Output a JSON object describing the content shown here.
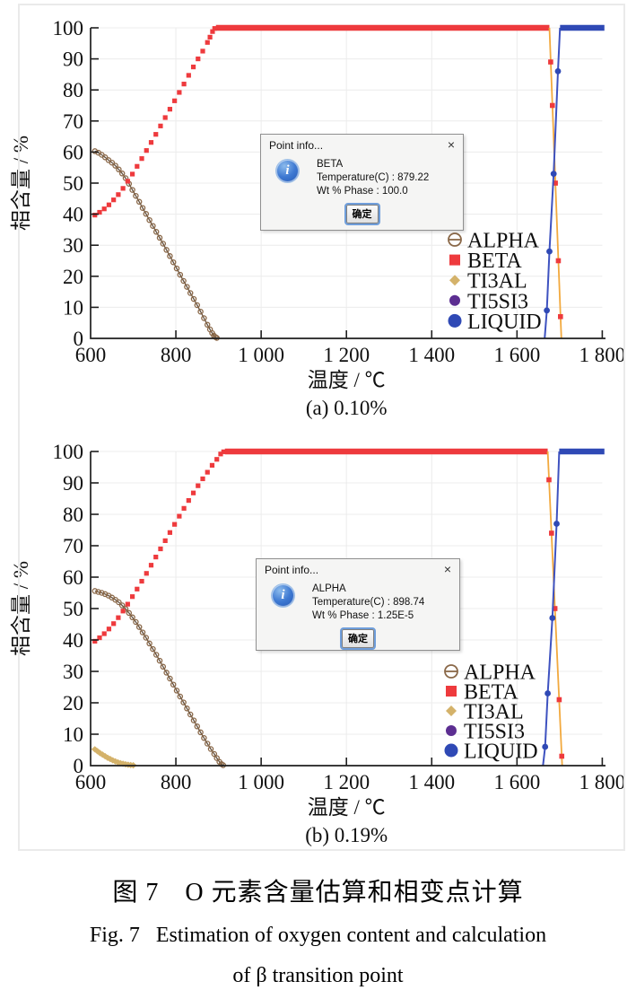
{
  "figure": {
    "caption_zh": "图 7　O 元素含量估算和相变点计算",
    "caption_en_line1": "Fig. 7   Estimation of oxygen content and calculation",
    "caption_en_line2": "of β transition point"
  },
  "axis": {
    "xlabel": "温度 / ℃",
    "ylabel": "相含量 / %",
    "xlim": [
      600,
      1800
    ],
    "ylim": [
      0,
      100
    ],
    "xticks": {
      "values": [
        600,
        800,
        1000,
        1200,
        1400,
        1600,
        1800
      ],
      "labels": [
        "600",
        "800",
        "1 000",
        "1 200",
        "1 400",
        "1 600",
        "1 800"
      ]
    },
    "yticks": [
      0,
      10,
      20,
      30,
      40,
      50,
      60,
      70,
      80,
      90,
      100
    ],
    "grid": true
  },
  "legend": {
    "position": "right-middle",
    "items": [
      {
        "label": "ALPHA",
        "marker": "theta",
        "color": "#8a6848"
      },
      {
        "label": "BETA",
        "marker": "square",
        "color": "#ee3a3d"
      },
      {
        "label": "TI3AL",
        "marker": "diamond",
        "color": "#d4b26a"
      },
      {
        "label": "TI5SI3",
        "marker": "dot",
        "color": "#5c2e91"
      },
      {
        "label": "LIQUID",
        "marker": "dot",
        "color": "#2f49b5"
      }
    ]
  },
  "colors": {
    "beta_marker": "#ee3a3d",
    "beta_line": "#f2a93e",
    "alpha_line": "#63503e",
    "alpha_marker": "#8a6848",
    "liquid_dot": "#2f49b5",
    "liquid_line": "#3e52c0",
    "ti3al": "#d4b26a",
    "ti5si3": "#5c2e91",
    "grid": "#ececec",
    "axis": "#1f1f1f"
  },
  "chart_data": [
    {
      "type": "line",
      "title": "(a) 0.10%",
      "xlabel": "温度 / ℃",
      "ylabel": "相含量 / %",
      "dialog": {
        "title": "Point info...",
        "close": "×",
        "icon_glyph": "i",
        "phase": "BETA",
        "line_temperature": "Temperature(C) : 879.22",
        "line_wt": "Wt % Phase : 100.0",
        "button": "确定"
      },
      "series": {
        "alpha_pts": [
          [
            610,
            60.3
          ],
          [
            618,
            59.8
          ],
          [
            626,
            59.1
          ],
          [
            634,
            58.3
          ],
          [
            642,
            57.4
          ],
          [
            650,
            56.6
          ],
          [
            658,
            55.6
          ],
          [
            666,
            54.4
          ],
          [
            674,
            53.1
          ],
          [
            682,
            51.6
          ],
          [
            690,
            49.8
          ],
          [
            698,
            47.8
          ],
          [
            706,
            45.9
          ],
          [
            714,
            44.0
          ],
          [
            722,
            42.0
          ],
          [
            730,
            40.1
          ],
          [
            738,
            38.1
          ],
          [
            746,
            36.2
          ],
          [
            754,
            34.3
          ],
          [
            762,
            32.4
          ],
          [
            770,
            30.5
          ],
          [
            778,
            28.5
          ],
          [
            786,
            26.5
          ],
          [
            794,
            24.5
          ],
          [
            802,
            22.5
          ],
          [
            810,
            20.5
          ],
          [
            818,
            18.5
          ],
          [
            826,
            16.6
          ],
          [
            834,
            14.6
          ],
          [
            842,
            12.7
          ],
          [
            850,
            10.7
          ],
          [
            858,
            8.6
          ],
          [
            866,
            6.5
          ],
          [
            874,
            4.4
          ],
          [
            880,
            2.9
          ],
          [
            885,
            1.7
          ],
          [
            889,
            0.9
          ],
          [
            893,
            0.4
          ],
          [
            896,
            0.15
          ]
        ],
        "beta_rise": [
          [
            610,
            39.7
          ],
          [
            621,
            40.6
          ],
          [
            632,
            41.7
          ],
          [
            643,
            43.0
          ],
          [
            654,
            44.6
          ],
          [
            665,
            46.3
          ],
          [
            676,
            48.3
          ],
          [
            687,
            50.6
          ],
          [
            698,
            52.9
          ],
          [
            709,
            55.4
          ],
          [
            720,
            57.9
          ],
          [
            731,
            60.5
          ],
          [
            742,
            63.1
          ],
          [
            753,
            65.7
          ],
          [
            764,
            68.4
          ],
          [
            775,
            71.1
          ],
          [
            786,
            73.8
          ],
          [
            797,
            76.5
          ],
          [
            808,
            79.2
          ],
          [
            819,
            81.9
          ],
          [
            830,
            84.7
          ],
          [
            841,
            87.4
          ],
          [
            852,
            90.0
          ],
          [
            863,
            92.5
          ],
          [
            874,
            95.3
          ],
          [
            880,
            97.0
          ],
          [
            886,
            98.8
          ],
          [
            891,
            99.8
          ]
        ],
        "beta_flat": [
          894,
          1676
        ],
        "beta_fall_line": [
          [
            1676,
            100
          ],
          [
            1704,
            0
          ]
        ],
        "beta_fall_markers": [
          [
            1679,
            89
          ],
          [
            1683,
            75
          ],
          [
            1690,
            50
          ],
          [
            1697,
            25
          ],
          [
            1702,
            7
          ]
        ],
        "liquid_rise": [
          [
            1665,
            0
          ],
          [
            1670,
            9
          ],
          [
            1676,
            28
          ],
          [
            1686,
            53
          ],
          [
            1696,
            86
          ],
          [
            1701,
            100
          ]
        ],
        "liquid_dots": [
          [
            1670,
            9
          ],
          [
            1676,
            28
          ],
          [
            1686,
            53
          ],
          [
            1696,
            86
          ]
        ],
        "liquid_flat": [
          1701,
          1805
        ]
      }
    },
    {
      "type": "line",
      "title": "(b) 0.19%",
      "xlabel": "温度 / ℃",
      "ylabel": "相含量 / %",
      "dialog": {
        "title": "Point info...",
        "close": "×",
        "icon_glyph": "i",
        "phase": "ALPHA",
        "line_temperature": "Temperature(C) : 898.74",
        "line_wt": "Wt % Phase : 1.25E-5",
        "button": "确定"
      },
      "series": {
        "alpha_pts": [
          [
            610,
            55.6
          ],
          [
            618,
            55.3
          ],
          [
            626,
            55.0
          ],
          [
            634,
            54.6
          ],
          [
            642,
            54.1
          ],
          [
            650,
            53.5
          ],
          [
            658,
            52.8
          ],
          [
            666,
            52.0
          ],
          [
            674,
            51.0
          ],
          [
            682,
            49.9
          ],
          [
            690,
            48.6
          ],
          [
            698,
            47.2
          ],
          [
            706,
            45.7
          ],
          [
            714,
            44.1
          ],
          [
            722,
            42.4
          ],
          [
            730,
            40.7
          ],
          [
            738,
            38.9
          ],
          [
            746,
            37.1
          ],
          [
            754,
            35.3
          ],
          [
            762,
            33.4
          ],
          [
            770,
            31.5
          ],
          [
            778,
            29.6
          ],
          [
            786,
            27.7
          ],
          [
            794,
            25.8
          ],
          [
            802,
            23.9
          ],
          [
            810,
            22.0
          ],
          [
            818,
            20.1
          ],
          [
            826,
            18.2
          ],
          [
            834,
            16.3
          ],
          [
            842,
            14.4
          ],
          [
            850,
            12.5
          ],
          [
            858,
            10.6
          ],
          [
            866,
            8.8
          ],
          [
            874,
            7.0
          ],
          [
            882,
            5.3
          ],
          [
            890,
            3.7
          ],
          [
            896,
            2.4
          ],
          [
            902,
            1.2
          ],
          [
            907,
            0.5
          ],
          [
            911,
            0.15
          ]
        ],
        "beta_rise": [
          [
            610,
            39.6
          ],
          [
            621,
            40.7
          ],
          [
            632,
            42.0
          ],
          [
            643,
            43.5
          ],
          [
            654,
            45.2
          ],
          [
            665,
            47.1
          ],
          [
            676,
            49.2
          ],
          [
            687,
            51.4
          ],
          [
            698,
            53.8
          ],
          [
            709,
            56.2
          ],
          [
            720,
            58.7
          ],
          [
            731,
            61.2
          ],
          [
            742,
            63.8
          ],
          [
            753,
            66.4
          ],
          [
            764,
            69.0
          ],
          [
            775,
            71.6
          ],
          [
            786,
            74.2
          ],
          [
            797,
            76.8
          ],
          [
            808,
            79.4
          ],
          [
            819,
            81.9
          ],
          [
            830,
            84.4
          ],
          [
            841,
            86.8
          ],
          [
            852,
            89.1
          ],
          [
            863,
            91.3
          ],
          [
            874,
            93.4
          ],
          [
            885,
            95.6
          ],
          [
            896,
            97.5
          ],
          [
            905,
            99.2
          ],
          [
            912,
            99.9
          ]
        ],
        "beta_flat": [
          915,
          1672
        ],
        "beta_fall_line": [
          [
            1672,
            100
          ],
          [
            1706,
            0
          ]
        ],
        "beta_fall_markers": [
          [
            1675,
            91
          ],
          [
            1681,
            74
          ],
          [
            1689,
            50
          ],
          [
            1699,
            21
          ],
          [
            1705,
            3
          ]
        ],
        "liquid_rise": [
          [
            1661,
            0
          ],
          [
            1666,
            6
          ],
          [
            1672,
            23
          ],
          [
            1683,
            47
          ],
          [
            1693,
            77
          ],
          [
            1699,
            100
          ]
        ],
        "liquid_dots": [
          [
            1666,
            6
          ],
          [
            1672,
            23
          ],
          [
            1683,
            47
          ],
          [
            1693,
            77
          ]
        ],
        "liquid_flat": [
          1699,
          1805
        ],
        "ti3al_pts": [
          [
            610,
            5.2
          ],
          [
            616,
            4.6
          ],
          [
            622,
            4.0
          ],
          [
            628,
            3.5
          ],
          [
            634,
            3.0
          ],
          [
            640,
            2.5
          ],
          [
            646,
            2.1
          ],
          [
            652,
            1.7
          ],
          [
            658,
            1.35
          ],
          [
            664,
            1.05
          ],
          [
            670,
            0.8
          ],
          [
            676,
            0.6
          ],
          [
            682,
            0.42
          ],
          [
            688,
            0.28
          ],
          [
            694,
            0.18
          ],
          [
            700,
            0.1
          ]
        ]
      }
    }
  ]
}
